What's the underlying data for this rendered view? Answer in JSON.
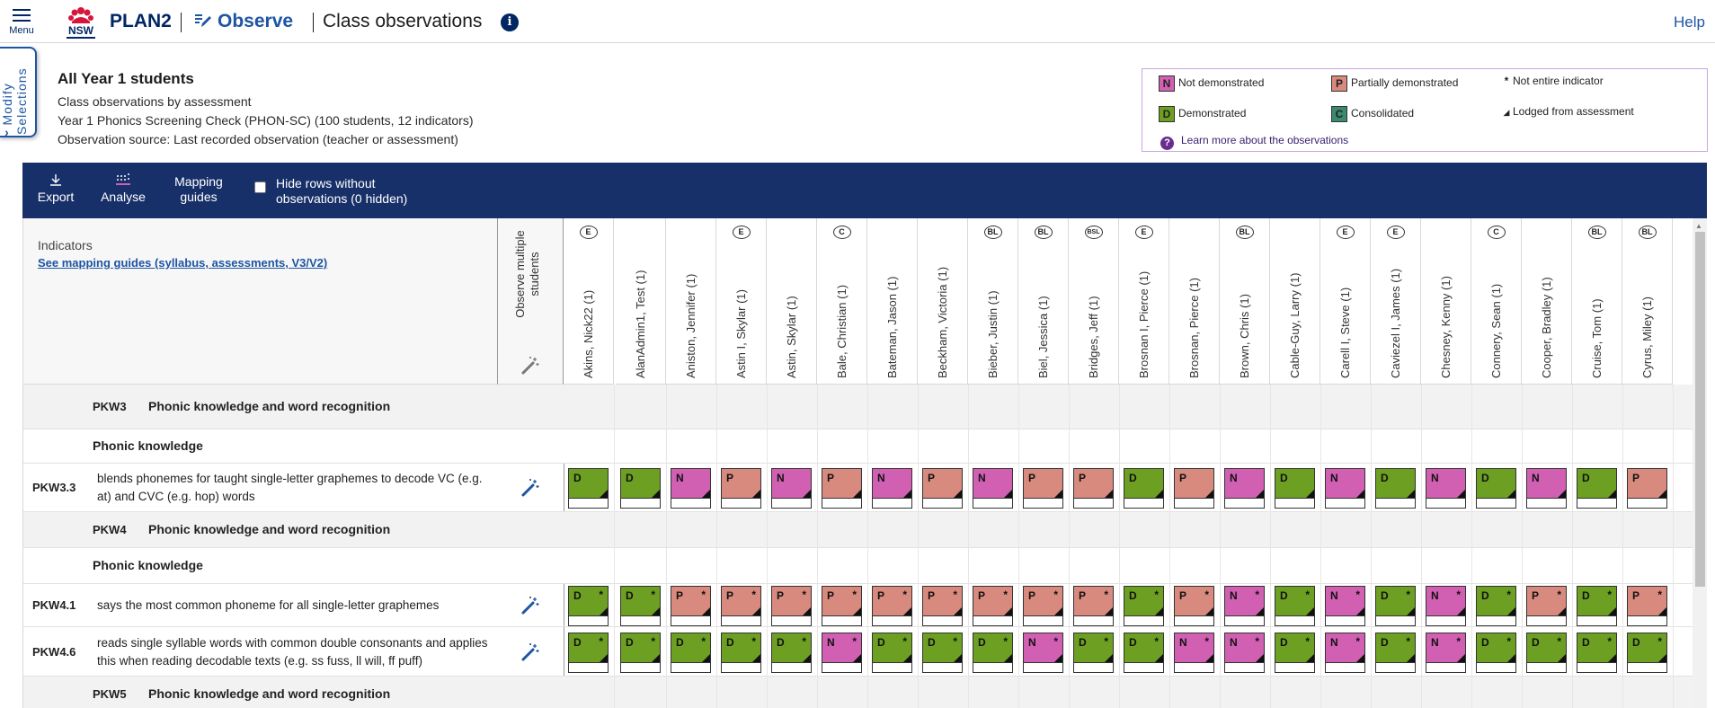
{
  "topbar": {
    "menu_label": "Menu",
    "app_name": "PLAN2",
    "observe_label": "Observe",
    "page_title": "Class observations",
    "help_label": "Help",
    "logo_text": "NSW"
  },
  "modify_tab": {
    "label": "Modify Selections"
  },
  "summary": {
    "heading": "All Year 1 students",
    "line1": "Class observations by assessment",
    "line2": "Year 1 Phonics Screening Check (PHON-SC) (100 students, 12 indicators)",
    "line3": "Observation source: Last recorded observation (teacher or assessment)"
  },
  "legend": {
    "items": [
      {
        "code": "N",
        "label": "Not demonstrated",
        "color": "#d160b3"
      },
      {
        "code": "P",
        "label": "Partially demonstrated",
        "color": "#d98a7e"
      },
      {
        "code": "D",
        "label": "Demonstrated",
        "color": "#6d9f22"
      },
      {
        "code": "C",
        "label": "Consolidated",
        "color": "#3a8a6f"
      }
    ],
    "not_entire": {
      "symbol": "*",
      "label": "Not entire indicator"
    },
    "lodged": {
      "symbol": "◢",
      "label": "Lodged from assessment"
    },
    "learn_more": "Learn more about the observations"
  },
  "toolbar": {
    "export_label": "Export",
    "analyse_label": "Analyse",
    "mapping_line1": "Mapping",
    "mapping_line2": "guides",
    "hide_line1": "Hide rows without",
    "hide_line2": "observations (0 hidden)"
  },
  "grid_header": {
    "indicators_label": "Indicators",
    "mapping_link": "See mapping guides (syllabus, assessments, V3/V2)",
    "observe_multiple": "Observe multiple students"
  },
  "students": [
    {
      "name": "Akins, Nick22 (1)",
      "badge": "E"
    },
    {
      "name": "AlanAdmin1, Test (1)",
      "badge": ""
    },
    {
      "name": "Aniston, Jennifer (1)",
      "badge": ""
    },
    {
      "name": "Astin I, Skylar (1)",
      "badge": "E"
    },
    {
      "name": "Astin, Skylar (1)",
      "badge": ""
    },
    {
      "name": "Bale, Christian (1)",
      "badge": "C"
    },
    {
      "name": "Bateman, Jason (1)",
      "badge": ""
    },
    {
      "name": "Beckham, Victoria (1)",
      "badge": ""
    },
    {
      "name": "Bieber, Justin (1)",
      "badge": "BL"
    },
    {
      "name": "Biel, Jessica (1)",
      "badge": "BL"
    },
    {
      "name": "Bridges, Jeff (1)",
      "badge": "BSL"
    },
    {
      "name": "Brosnan I, Pierce (1)",
      "badge": "E"
    },
    {
      "name": "Brosnan, Pierce (1)",
      "badge": ""
    },
    {
      "name": "Brown, Chris (1)",
      "badge": "BL"
    },
    {
      "name": "Cable-Guy, Larry (1)",
      "badge": ""
    },
    {
      "name": "Carell I, Steve (1)",
      "badge": "E"
    },
    {
      "name": "Caviezel I, James (1)",
      "badge": "E"
    },
    {
      "name": "Chesney, Kenny (1)",
      "badge": ""
    },
    {
      "name": "Connery, Sean (1)",
      "badge": "C"
    },
    {
      "name": "Cooper, Bradley (1)",
      "badge": ""
    },
    {
      "name": "Cruise, Tom (1)",
      "badge": "BL"
    },
    {
      "name": "Cyrus, Miley (1)",
      "badge": "BL"
    }
  ],
  "sections": [
    {
      "code": "PKW3",
      "title": "Phonic knowledge and word recognition"
    },
    {
      "group": "Phonic knowledge"
    },
    {
      "code": "PKW4",
      "title": "Phonic knowledge and word recognition"
    },
    {
      "group": "Phonic knowledge"
    },
    {
      "code": "PKW5",
      "title": "Phonic knowledge and word recognition"
    }
  ],
  "indicators": [
    {
      "code": "PKW3.3",
      "desc": "blends phonemes for taught single-letter graphemes to decode VC (e.g. at) and CVC (e.g. hop) words",
      "obs": [
        "D",
        "D",
        "N",
        "P",
        "N",
        "P",
        "N",
        "P",
        "N",
        "P",
        "P",
        "D",
        "P",
        "N",
        "D",
        "N",
        "D",
        "N",
        "D",
        "N",
        "D",
        "P"
      ],
      "partial": false
    },
    {
      "code": "PKW4.1",
      "desc": "says the most common phoneme for all single-letter graphemes",
      "obs": [
        "D",
        "D",
        "P",
        "P",
        "P",
        "P",
        "P",
        "P",
        "P",
        "P",
        "P",
        "D",
        "P",
        "N",
        "D",
        "N",
        "D",
        "N",
        "D",
        "P",
        "D",
        "P"
      ],
      "partial": true
    },
    {
      "code": "PKW4.6",
      "desc": "reads single syllable words with common double consonants and applies this when reading decodable texts (e.g. ss fuss, ll will, ff puff)",
      "obs": [
        "D",
        "D",
        "D",
        "D",
        "D",
        "N",
        "D",
        "D",
        "D",
        "N",
        "D",
        "D",
        "N",
        "N",
        "D",
        "N",
        "D",
        "N",
        "D",
        "D",
        "D",
        "D"
      ],
      "partial": true
    }
  ],
  "colors": {
    "N": "#d160b3",
    "P": "#d98a7e",
    "D": "#6d9f22",
    "C": "#3a8a6f",
    "toolbar": "#183069",
    "brand": "#002664"
  }
}
